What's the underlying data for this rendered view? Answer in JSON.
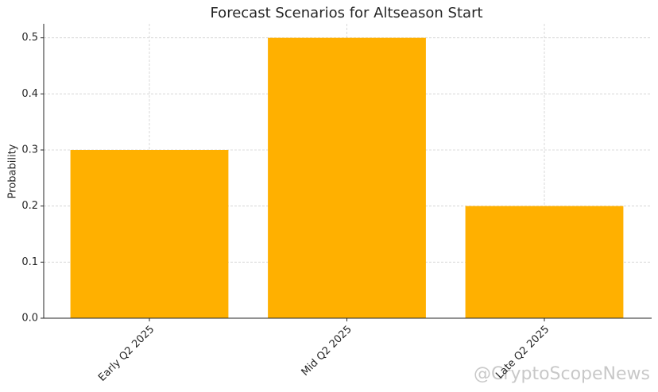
{
  "chart_data": {
    "type": "bar",
    "title": "Forecast Scenarios for Altseason Start",
    "y_label": "Probability",
    "categories": [
      "Early Q2 2025",
      "Mid Q2 2025",
      "Late Q2 2025"
    ],
    "values": [
      0.3,
      0.5,
      0.2
    ],
    "color": "#ffb000",
    "ylim": [
      0,
      0.525
    ],
    "yticks": [
      {
        "value": 0,
        "label": "0.0"
      },
      0.1,
      0.2,
      0.3,
      0.4,
      0.5
    ],
    "grid": true,
    "watermark": "@CryptoScopeNews"
  }
}
